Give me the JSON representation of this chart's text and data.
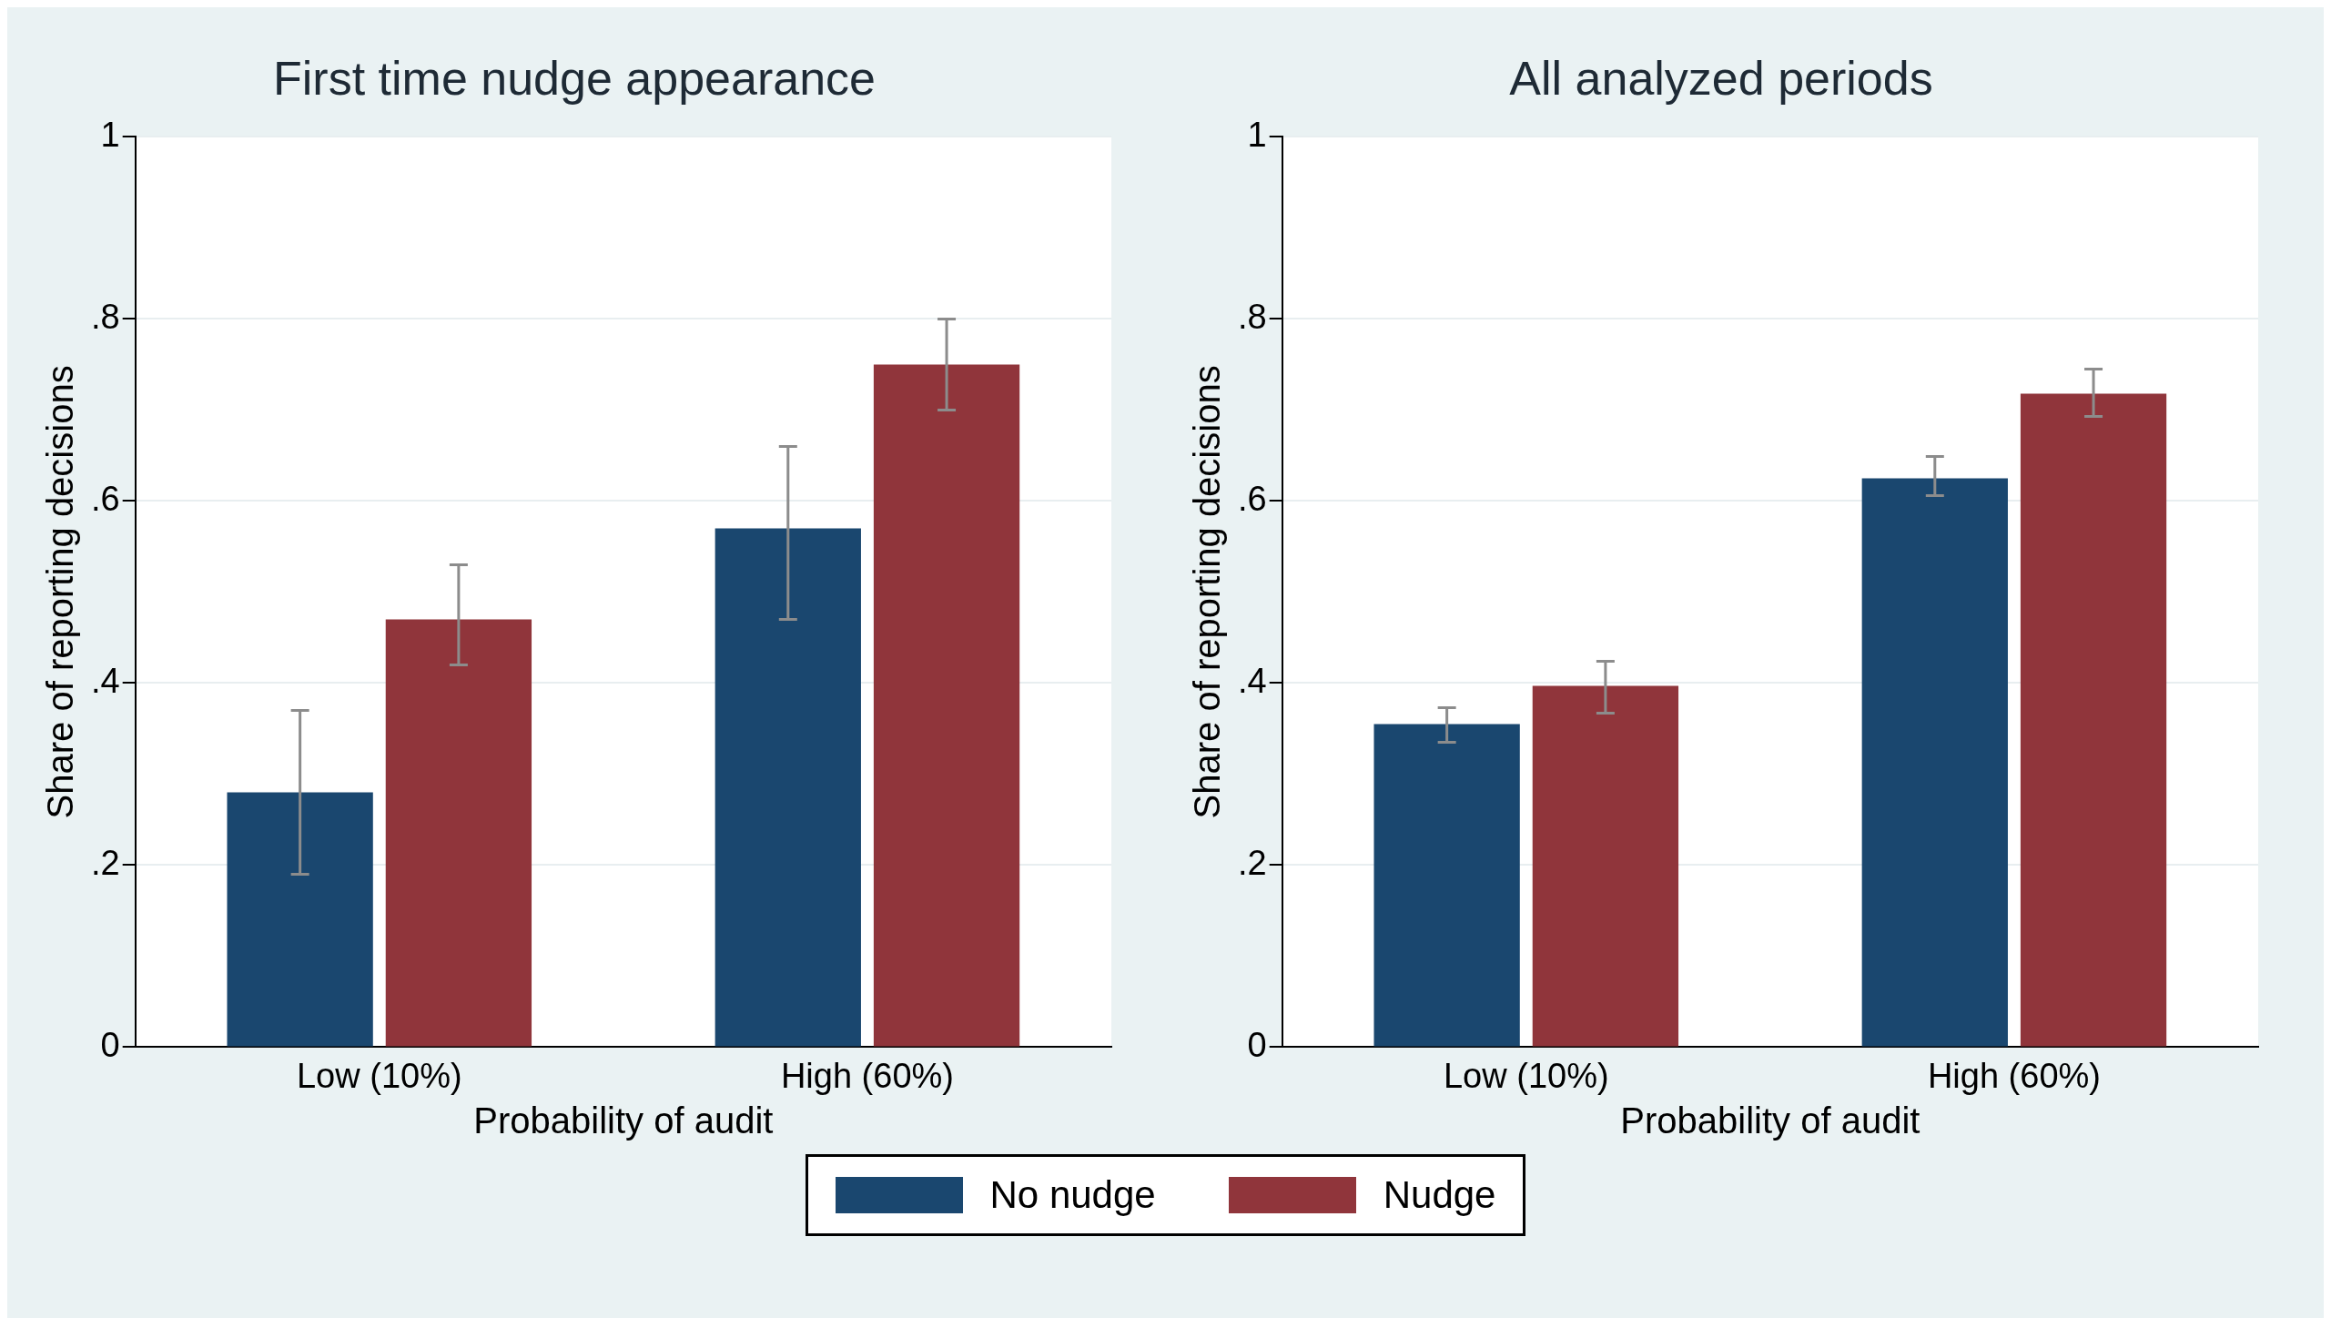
{
  "chart_data": [
    {
      "type": "bar",
      "title": "First time nudge appearance",
      "xlabel": "Probability of audit",
      "ylabel": "Share of reporting decisions",
      "categories": [
        "Low (10%)",
        "High (60%)"
      ],
      "series": [
        {
          "name": "No nudge",
          "color": "#1a476f",
          "values": [
            0.28,
            0.57
          ],
          "errors": [
            [
              0.19,
              0.37
            ],
            [
              0.47,
              0.66
            ]
          ]
        },
        {
          "name": "Nudge",
          "color": "#90353b",
          "values": [
            0.47,
            0.75
          ],
          "errors": [
            [
              0.42,
              0.53
            ],
            [
              0.7,
              0.8
            ]
          ]
        }
      ],
      "ylim": [
        0,
        1
      ],
      "yticks": [
        {
          "value": 0,
          "label": "0"
        },
        {
          "value": 0.2,
          "label": ".2"
        },
        {
          "value": 0.4,
          "label": ".4"
        },
        {
          "value": 0.6,
          "label": ".6"
        },
        {
          "value": 0.8,
          "label": ".8"
        },
        {
          "value": 1,
          "label": "1"
        }
      ],
      "grid": "y",
      "legend": "bottom"
    },
    {
      "type": "bar",
      "title": "All analyzed periods",
      "xlabel": "Probability of audit",
      "ylabel": "Share of reporting decisions",
      "categories": [
        "Low (10%)",
        "High (60%)"
      ],
      "series": [
        {
          "name": "No nudge",
          "color": "#1a476f",
          "values": [
            0.355,
            0.625
          ],
          "errors": [
            [
              0.335,
              0.373
            ],
            [
              0.606,
              0.649
            ]
          ]
        },
        {
          "name": "Nudge",
          "color": "#90353b",
          "values": [
            0.397,
            0.718
          ],
          "errors": [
            [
              0.367,
              0.424
            ],
            [
              0.693,
              0.745
            ]
          ]
        }
      ],
      "ylim": [
        0,
        1
      ],
      "yticks": [
        {
          "value": 0,
          "label": "0"
        },
        {
          "value": 0.2,
          "label": ".2"
        },
        {
          "value": 0.4,
          "label": ".4"
        },
        {
          "value": 0.6,
          "label": ".6"
        },
        {
          "value": 0.8,
          "label": ".8"
        },
        {
          "value": 1,
          "label": "1"
        }
      ],
      "grid": "y",
      "legend": "bottom"
    }
  ]
}
